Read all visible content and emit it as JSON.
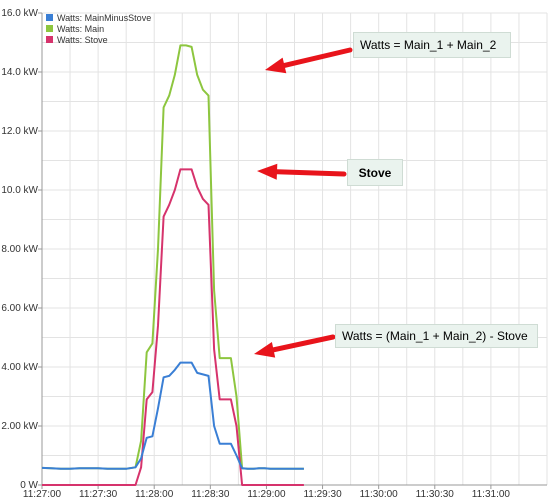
{
  "chart_data": {
    "type": "line",
    "title": "",
    "xlabel": "",
    "ylabel": "",
    "x_ticks": [
      "11:27:00",
      "11:27:30",
      "11:28:00",
      "11:28:30",
      "11:29:00",
      "11:29:30",
      "11:30:00",
      "11:30:30",
      "11:31:00"
    ],
    "y_ticks": [
      "0 W",
      "2.00 kW",
      "4.00 kW",
      "6.00 kW",
      "8.00 kW",
      "10.0 kW",
      "12.0 kW",
      "14.0 kW",
      "16.0 kW"
    ],
    "xlim": [
      0,
      270
    ],
    "ylim": [
      0,
      16
    ],
    "x_unit": "seconds after 11:27:00",
    "y_unit": "kW",
    "grid": true,
    "legend_position": "top-left",
    "series": [
      {
        "name": "Watts: MainMinusStove",
        "color": "#3a7fd5",
        "x": [
          0,
          5,
          10,
          15,
          20,
          25,
          30,
          35,
          40,
          45,
          50,
          53,
          56,
          59,
          62,
          65,
          68,
          71,
          74,
          77,
          80,
          83,
          86,
          89,
          92,
          95,
          98,
          101,
          104,
          107,
          110,
          113,
          116,
          119,
          122,
          125,
          128,
          131,
          134,
          137,
          140
        ],
        "y": [
          0.58,
          0.57,
          0.55,
          0.55,
          0.57,
          0.57,
          0.57,
          0.55,
          0.55,
          0.55,
          0.6,
          0.9,
          1.6,
          1.65,
          2.6,
          3.65,
          3.7,
          3.9,
          4.15,
          4.15,
          4.15,
          3.8,
          3.75,
          3.7,
          2.0,
          1.4,
          1.4,
          1.4,
          1.0,
          0.57,
          0.55,
          0.55,
          0.57,
          0.57,
          0.55,
          0.55,
          0.55,
          0.55,
          0.55,
          0.55,
          0.55
        ]
      },
      {
        "name": "Watts: Main",
        "color": "#8dc63f",
        "x": [
          0,
          5,
          10,
          15,
          20,
          25,
          30,
          35,
          40,
          45,
          50,
          53,
          56,
          59,
          62,
          65,
          68,
          71,
          74,
          77,
          80,
          83,
          86,
          89,
          92,
          95,
          98,
          101,
          104,
          107,
          110,
          113,
          116,
          119,
          122,
          125,
          128,
          131,
          134,
          137,
          140
        ],
        "y": [
          0.58,
          0.57,
          0.55,
          0.55,
          0.57,
          0.57,
          0.57,
          0.55,
          0.55,
          0.55,
          0.6,
          1.5,
          4.5,
          4.8,
          8.0,
          12.8,
          13.2,
          13.9,
          14.9,
          14.9,
          14.85,
          13.9,
          13.4,
          13.2,
          6.6,
          4.3,
          4.3,
          4.3,
          3.0,
          0.57,
          0.55,
          0.55,
          0.57,
          0.57,
          0.55,
          0.55,
          0.55,
          0.55,
          0.55,
          0.55,
          0.55
        ]
      },
      {
        "name": "Watts: Stove",
        "color": "#d6336c",
        "x": [
          0,
          5,
          10,
          15,
          20,
          25,
          30,
          35,
          40,
          45,
          50,
          53,
          56,
          59,
          62,
          65,
          68,
          71,
          74,
          77,
          80,
          83,
          86,
          89,
          92,
          95,
          98,
          101,
          104,
          107,
          110,
          113,
          116,
          119,
          122,
          125,
          128,
          131,
          134,
          137,
          140
        ],
        "y": [
          0,
          0,
          0,
          0,
          0,
          0,
          0,
          0,
          0,
          0,
          0,
          0.6,
          2.9,
          3.15,
          5.4,
          9.1,
          9.5,
          10.0,
          10.7,
          10.7,
          10.7,
          10.1,
          9.7,
          9.5,
          4.6,
          2.9,
          2.9,
          2.9,
          2.0,
          0,
          0,
          0,
          0,
          0,
          0,
          0,
          0,
          0,
          0,
          0,
          0
        ]
      }
    ],
    "annotations": [
      {
        "text": "Watts = Main_1 + Main_2",
        "points_to": "Watts: Main peak",
        "arrow_color": "#e8141b"
      },
      {
        "text": "Stove",
        "points_to": "Watts: Stove peak",
        "arrow_color": "#e8141b"
      },
      {
        "text": "Watts = (Main_1 + Main_2) - Stove",
        "points_to": "Watts: MainMinusStove peak",
        "arrow_color": "#e8141b"
      }
    ]
  }
}
